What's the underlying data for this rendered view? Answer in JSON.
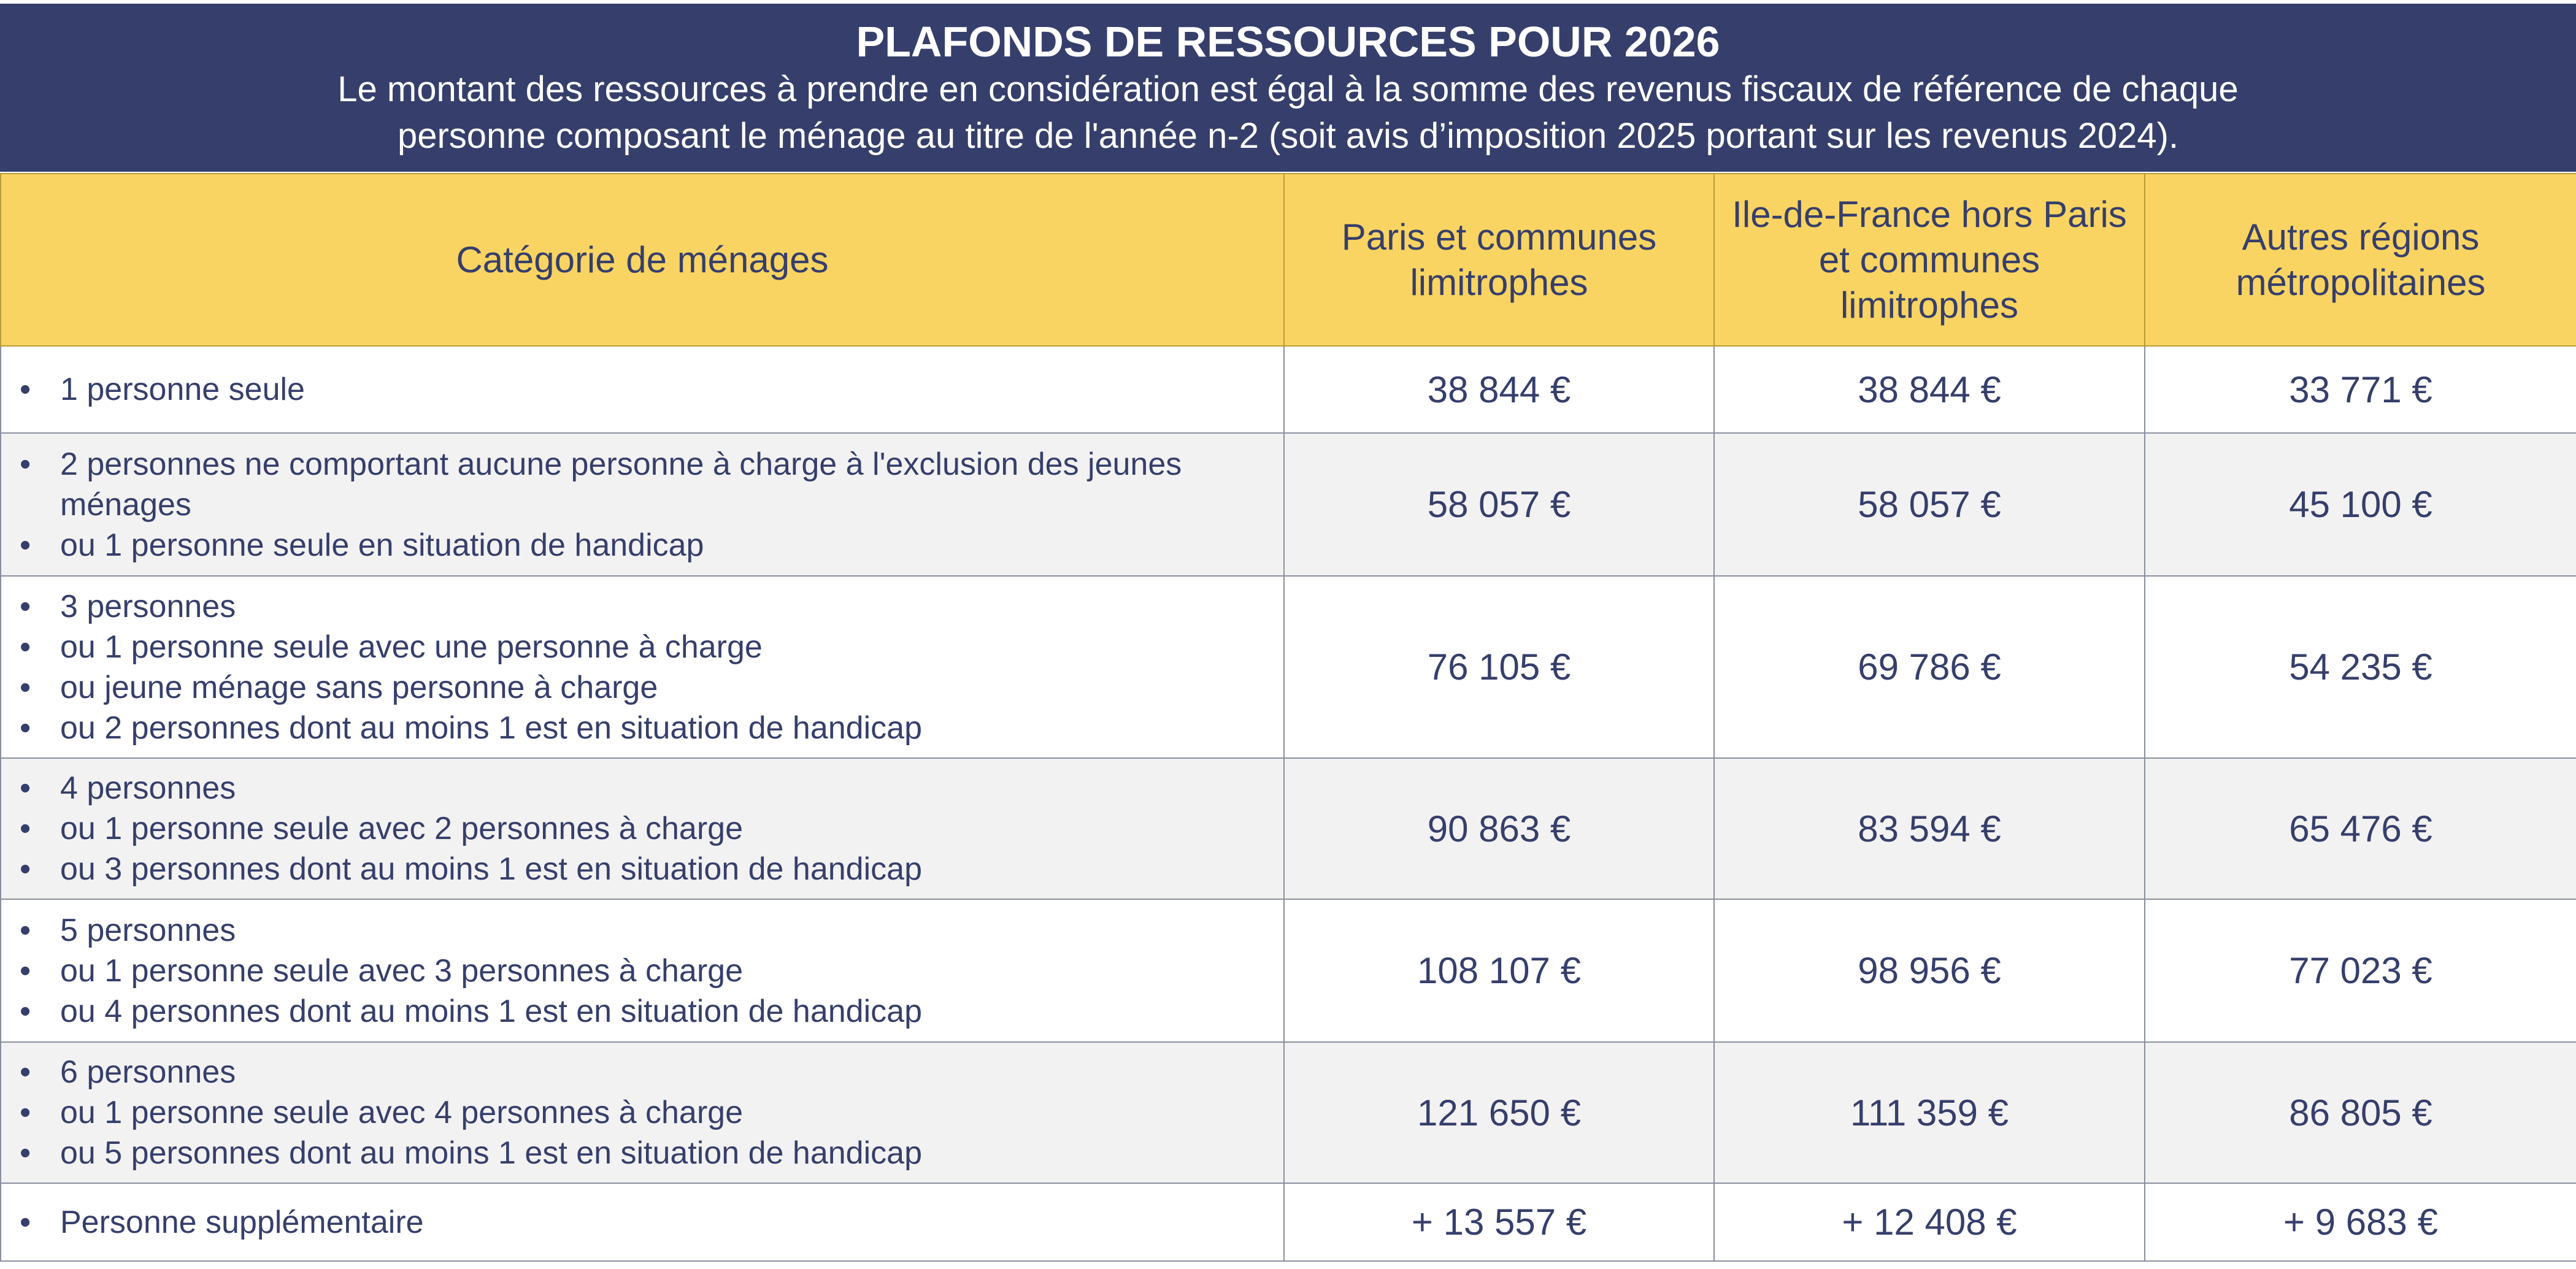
{
  "banner": {
    "title": "PLAFONDS DE RESSOURCES POUR 2026",
    "subtitle_line1": "Le montant des ressources à prendre en considération est égal à la somme des revenus fiscaux de référence de chaque",
    "subtitle_line2": "personne composant le ménage au titre de l'année n-2 (soit avis d’imposition 2025 portant sur les revenus 2024)."
  },
  "colors": {
    "navy": "#363f6b",
    "yellow": "#fad462",
    "row_alt": "#f2f2f2"
  },
  "table": {
    "headers": [
      "Catégorie de ménages",
      "Paris et communes limitrophes",
      "Ile-de-France hors Paris et communes limitrophes",
      "Autres régions métropolitaines"
    ],
    "rows": [
      {
        "category": [
          "1 personne seule"
        ],
        "values": [
          "38 844 €",
          "38 844 €",
          "33 771 €"
        ]
      },
      {
        "category": [
          "2 personnes ne comportant aucune personne à charge à l'exclusion des jeunes ménages",
          "ou 1 personne seule en situation de handicap"
        ],
        "values": [
          "58 057 €",
          "58 057 €",
          "45 100 €"
        ]
      },
      {
        "category": [
          "3 personnes",
          "ou 1 personne seule avec une personne à charge",
          "ou jeune ménage sans personne à charge",
          "ou 2 personnes dont au moins 1 est en situation de handicap"
        ],
        "values": [
          "76 105 €",
          "69 786 €",
          "54 235 €"
        ]
      },
      {
        "category": [
          "4 personnes",
          "ou 1 personne seule avec 2 personnes à charge",
          "ou 3 personnes dont au moins 1 est en situation de handicap"
        ],
        "values": [
          "90 863 €",
          "83 594 €",
          "65 476 €"
        ]
      },
      {
        "category": [
          "5 personnes",
          "ou 1 personne seule avec 3 personnes à charge",
          "ou 4 personnes dont au moins 1 est en situation de handicap"
        ],
        "values": [
          "108 107 €",
          "98 956 €",
          "77 023 €"
        ]
      },
      {
        "category": [
          "6 personnes",
          "ou 1 personne seule avec 4 personnes à charge",
          "ou 5 personnes dont au moins 1 est en situation de handicap"
        ],
        "values": [
          "121 650 €",
          "111 359 €",
          "86 805 €"
        ]
      },
      {
        "category": [
          "Personne supplémentaire"
        ],
        "values": [
          "+ 13 557 €",
          "+ 12 408 €",
          "+ 9 683 €"
        ]
      }
    ]
  }
}
